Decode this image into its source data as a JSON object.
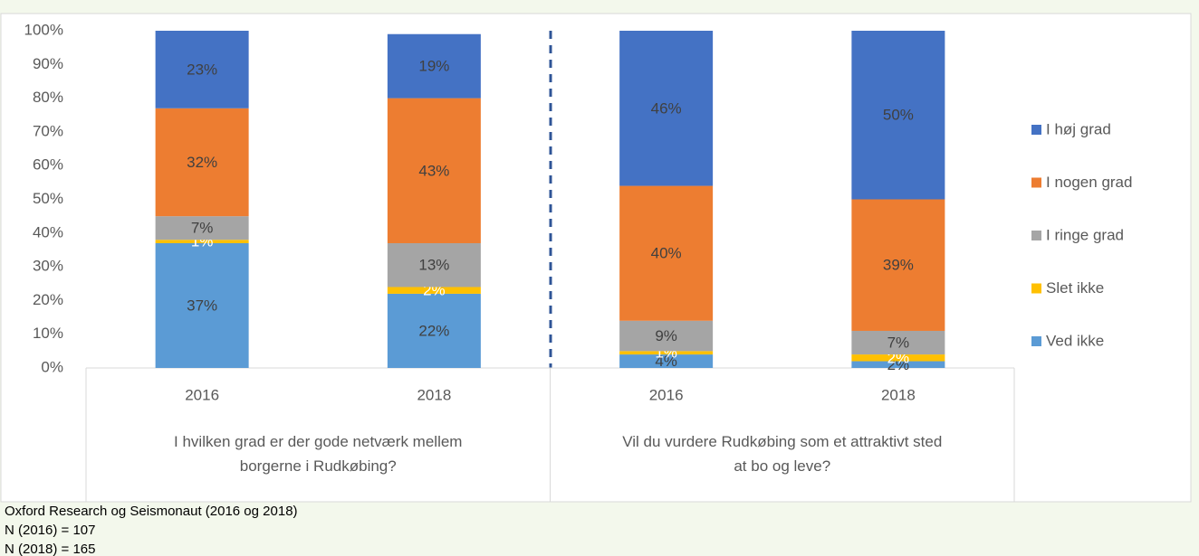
{
  "chart_data": {
    "type": "stacked_bar",
    "categories": [
      "2016",
      "2018",
      "2016",
      "2018"
    ],
    "groups": [
      {
        "label": "I hvilken grad er der gode netværk mellem borgerne i Rudkøbing?",
        "span": 2
      },
      {
        "label": "Vil du vurdere Rudkøbing som et attraktivt sted at bo og leve?",
        "span": 2
      }
    ],
    "series": [
      {
        "name": "Ved ikke",
        "color": "#5b9bd5",
        "values": [
          37,
          22,
          4,
          2
        ],
        "value_labels": [
          "37%",
          "22%",
          "4%",
          "2%"
        ]
      },
      {
        "name": "Slet ikke",
        "color": "#ffc000",
        "values": [
          1,
          2,
          1,
          2
        ],
        "value_labels": [
          "1%",
          "2%",
          "1%",
          "2%"
        ]
      },
      {
        "name": "I ringe grad",
        "color": "#a5a5a5",
        "values": [
          7,
          13,
          9,
          7
        ],
        "value_labels": [
          "7%",
          "13%",
          "9%",
          "7%"
        ]
      },
      {
        "name": "I nogen grad",
        "color": "#ed7d31",
        "values": [
          32,
          43,
          40,
          39
        ],
        "value_labels": [
          "32%",
          "43%",
          "40%",
          "39%"
        ]
      },
      {
        "name": "I høj grad",
        "color": "#4472c4",
        "values": [
          23,
          19,
          46,
          50
        ],
        "value_labels": [
          "23%",
          "19%",
          "46%",
          "50%"
        ]
      }
    ],
    "ylim": [
      0,
      100
    ],
    "yticks": [
      {
        "value": 0,
        "label": "0%"
      },
      {
        "value": 10,
        "label": "10%"
      },
      {
        "value": 20,
        "label": "20%"
      },
      {
        "value": 30,
        "label": "30%"
      },
      {
        "value": 40,
        "label": "40%"
      },
      {
        "value": 50,
        "label": "50%"
      },
      {
        "value": 60,
        "label": "60%"
      },
      {
        "value": 70,
        "label": "70%"
      },
      {
        "value": 80,
        "label": "80%"
      },
      {
        "value": 90,
        "label": "90%"
      },
      {
        "value": 100,
        "label": "100%"
      }
    ],
    "grid": false,
    "legend": "right",
    "notes": [
      "Oxford Research og Seismonaut (2016 og 2018)",
      "N (2016) = 107",
      "N (2018) = 165"
    ]
  }
}
